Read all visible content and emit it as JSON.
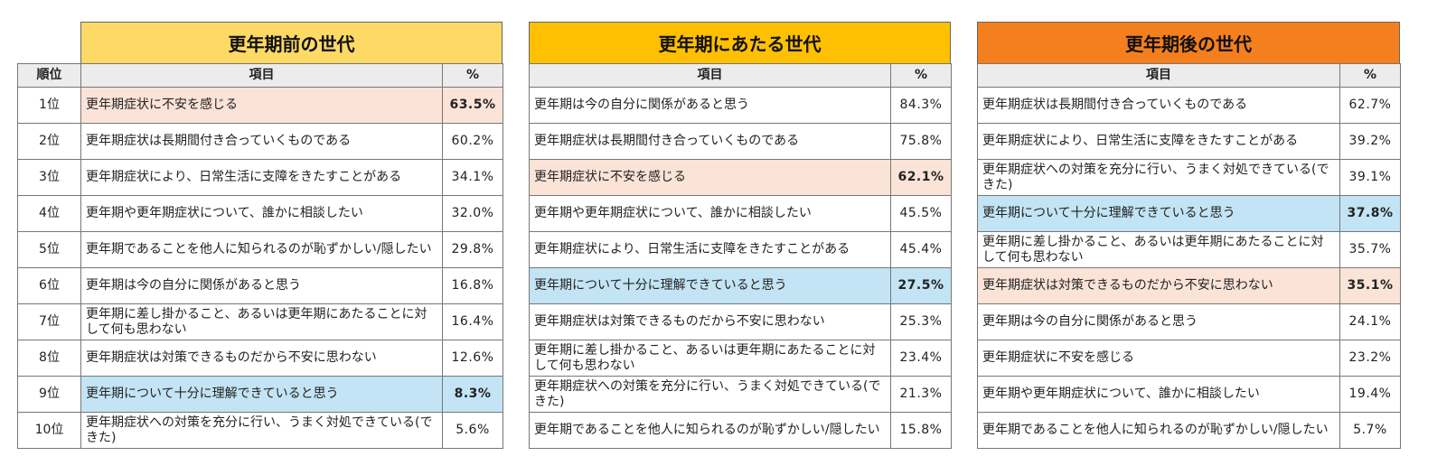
{
  "rank_header": "順位",
  "ranks": [
    "1位",
    "2位",
    "3位",
    "4位",
    "5位",
    "6位",
    "7位",
    "8位",
    "9位",
    "10位"
  ],
  "item_header": "項目",
  "pct_header": "%",
  "colors": {
    "panel1_title_bg": "#fdd966",
    "panel2_title_bg": "#fec000",
    "panel3_title_bg": "#f47f1f",
    "highlight_pink": "#fbe3d8",
    "highlight_blue": "#c2e4f4",
    "header_gray": "#ececec"
  },
  "chart_data": {
    "type": "table",
    "panels": [
      {
        "title": "更年期前の世代",
        "rows": [
          {
            "item": "更年期症状に不安を感じる",
            "pct": "63.5%",
            "highlight": "pink"
          },
          {
            "item": "更年期症状は長期間付き合っていくものである",
            "pct": "60.2%",
            "highlight": ""
          },
          {
            "item": "更年期症状により、日常生活に支障をきたすことがある",
            "pct": "34.1%",
            "highlight": ""
          },
          {
            "item": "更年期や更年期症状について、誰かに相談したい",
            "pct": "32.0%",
            "highlight": ""
          },
          {
            "item": "更年期であることを他人に知られるのが恥ずかしい/隠したい",
            "pct": "29.8%",
            "highlight": ""
          },
          {
            "item": "更年期は今の自分に関係があると思う",
            "pct": "16.8%",
            "highlight": ""
          },
          {
            "item": "更年期に差し掛かること、あるいは更年期にあたることに対して何も思わない",
            "pct": "16.4%",
            "highlight": ""
          },
          {
            "item": "更年期症状は対策できるものだから不安に思わない",
            "pct": "12.6%",
            "highlight": ""
          },
          {
            "item": "更年期について十分に理解できていると思う",
            "pct": "8.3%",
            "highlight": "blue"
          },
          {
            "item": "更年期症状への対策を充分に行い、うまく対処できている(できた)",
            "pct": "5.6%",
            "highlight": ""
          }
        ]
      },
      {
        "title": "更年期にあたる世代",
        "rows": [
          {
            "item": "更年期は今の自分に関係があると思う",
            "pct": "84.3%",
            "highlight": ""
          },
          {
            "item": "更年期症状は長期間付き合っていくものである",
            "pct": "75.8%",
            "highlight": ""
          },
          {
            "item": "更年期症状に不安を感じる",
            "pct": "62.1%",
            "highlight": "pink"
          },
          {
            "item": "更年期や更年期症状について、誰かに相談したい",
            "pct": "45.5%",
            "highlight": ""
          },
          {
            "item": "更年期症状により、日常生活に支障をきたすことがある",
            "pct": "45.4%",
            "highlight": ""
          },
          {
            "item": "更年期について十分に理解できていると思う",
            "pct": "27.5%",
            "highlight": "blue"
          },
          {
            "item": "更年期症状は対策できるものだから不安に思わない",
            "pct": "25.3%",
            "highlight": ""
          },
          {
            "item": "更年期に差し掛かること、あるいは更年期にあたることに対して何も思わない",
            "pct": "23.4%",
            "highlight": ""
          },
          {
            "item": "更年期症状への対策を充分に行い、うまく対処できている(できた)",
            "pct": "21.3%",
            "highlight": ""
          },
          {
            "item": "更年期であることを他人に知られるのが恥ずかしい/隠したい",
            "pct": "15.8%",
            "highlight": ""
          }
        ]
      },
      {
        "title": "更年期後の世代",
        "rows": [
          {
            "item": "更年期症状は長期間付き合っていくものである",
            "pct": "62.7%",
            "highlight": ""
          },
          {
            "item": "更年期症状により、日常生活に支障をきたすことがある",
            "pct": "39.2%",
            "highlight": ""
          },
          {
            "item": "更年期症状への対策を充分に行い、うまく対処できている(できた)",
            "pct": "39.1%",
            "highlight": ""
          },
          {
            "item": "更年期について十分に理解できていると思う",
            "pct": "37.8%",
            "highlight": "blue"
          },
          {
            "item": "更年期に差し掛かること、あるいは更年期にあたることに対して何も思わない",
            "pct": "35.7%",
            "highlight": ""
          },
          {
            "item": "更年期症状は対策できるものだから不安に思わない",
            "pct": "35.1%",
            "highlight": "pink"
          },
          {
            "item": "更年期は今の自分に関係があると思う",
            "pct": "24.1%",
            "highlight": ""
          },
          {
            "item": "更年期症状に不安を感じる",
            "pct": "23.2%",
            "highlight": ""
          },
          {
            "item": "更年期や更年期症状について、誰かに相談したい",
            "pct": "19.4%",
            "highlight": ""
          },
          {
            "item": "更年期であることを他人に知られるのが恥ずかしい/隠したい",
            "pct": "5.7%",
            "highlight": ""
          }
        ]
      }
    ]
  }
}
